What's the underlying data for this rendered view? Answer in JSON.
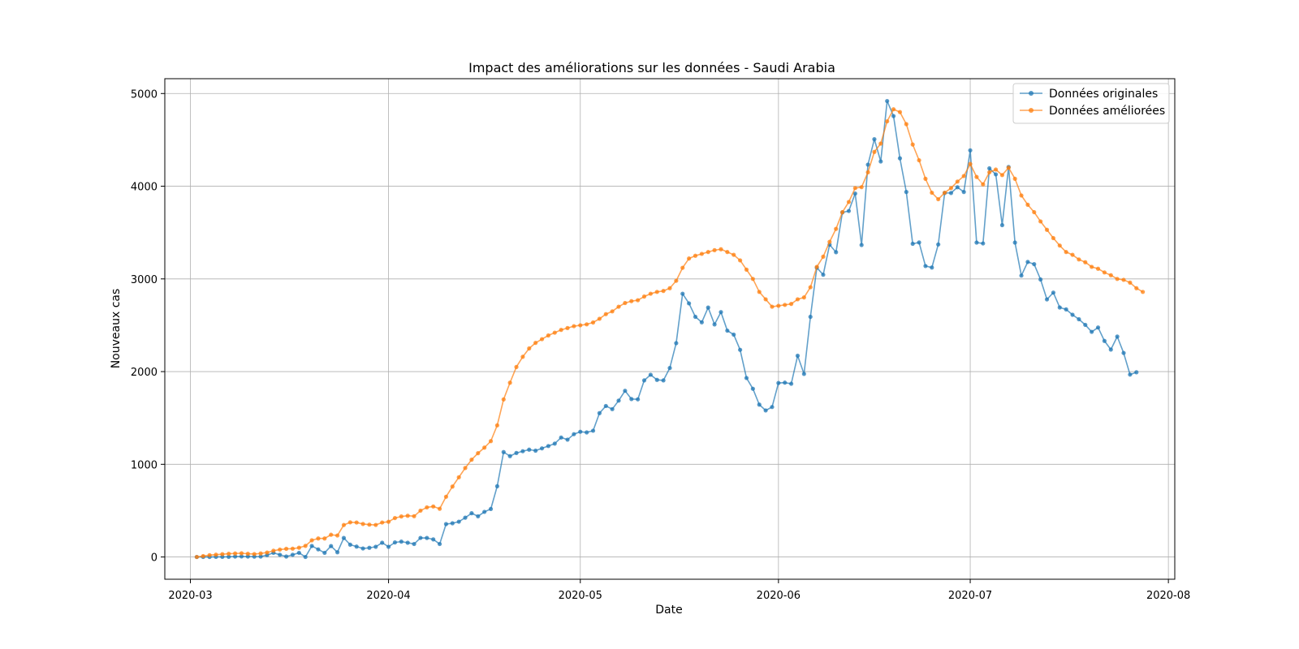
{
  "chart_data": {
    "type": "line",
    "title": "Impact des améliorations sur les données - Saudi Arabia",
    "xlabel": "Date",
    "ylabel": "Nouveaux cas",
    "x_start": "2020-03-02",
    "x_ticks": [
      "2020-03",
      "2020-04",
      "2020-05",
      "2020-06",
      "2020-07",
      "2020-08"
    ],
    "y_ticks": [
      0,
      1000,
      2000,
      3000,
      4000,
      5000
    ],
    "xlim": [
      "2020-02-26",
      "2020-08-02"
    ],
    "ylim": [
      -240,
      5160
    ],
    "grid": true,
    "legend_position": "top-right",
    "series": [
      {
        "name": "Données originales",
        "color": "#1f77b4",
        "values": [
          0,
          0,
          0,
          1,
          1,
          2,
          5,
          6,
          5,
          4,
          5,
          20,
          45,
          24,
          5,
          24,
          45,
          0,
          119,
          82,
          45,
          118,
          51,
          205,
          133,
          112,
          92,
          99,
          110,
          154,
          110,
          157,
          166,
          154,
          140,
          206,
          205,
          190,
          140,
          355,
          364,
          381,
          424,
          472,
          439,
          487,
          518,
          763,
          1132,
          1088,
          1122,
          1141,
          1158,
          1147,
          1172,
          1197,
          1223,
          1289,
          1266,
          1325,
          1351,
          1344,
          1362,
          1552,
          1629,
          1595,
          1687,
          1793,
          1704,
          1701,
          1905,
          1966,
          1911,
          1905,
          2039,
          2307,
          2840,
          2736,
          2591,
          2532,
          2691,
          2509,
          2642,
          2442,
          2399,
          2235,
          1931,
          1815,
          1644,
          1581,
          1618,
          1877,
          1881,
          1869,
          2171,
          1975,
          2591,
          3121,
          3045,
          3369,
          3288,
          3717,
          3733,
          3921,
          3366,
          4233,
          4507,
          4267,
          4919,
          4757,
          4301,
          3938,
          3379,
          3393,
          3139,
          3123,
          3372,
          3927,
          3927,
          3989,
          3938,
          4387,
          3392,
          3383,
          4193,
          4128,
          3580,
          4207,
          3392,
          3036,
          3183,
          3159,
          2994,
          2779,
          2852,
          2692,
          2671,
          2613,
          2565,
          2504,
          2429,
          2476,
          2331,
          2238,
          2378,
          2201,
          1968,
          1993
        ]
      },
      {
        "name": "Données améliorées",
        "color": "#ff7f0e",
        "values": [
          0,
          10,
          20,
          25,
          30,
          35,
          38,
          40,
          35,
          32,
          38,
          48,
          68,
          80,
          88,
          90,
          100,
          120,
          180,
          200,
          200,
          240,
          232,
          345,
          374,
          372,
          356,
          349,
          346,
          372,
          380,
          420,
          437,
          445,
          440,
          500,
          535,
          545,
          520,
          650,
          760,
          860,
          960,
          1050,
          1120,
          1180,
          1250,
          1420,
          1700,
          1880,
          2050,
          2160,
          2250,
          2310,
          2350,
          2390,
          2420,
          2450,
          2470,
          2490,
          2500,
          2510,
          2530,
          2570,
          2620,
          2650,
          2700,
          2740,
          2760,
          2770,
          2810,
          2840,
          2860,
          2870,
          2900,
          2980,
          3120,
          3220,
          3250,
          3270,
          3290,
          3310,
          3320,
          3290,
          3260,
          3200,
          3100,
          3000,
          2860,
          2780,
          2700,
          2710,
          2720,
          2730,
          2780,
          2800,
          2910,
          3130,
          3240,
          3400,
          3540,
          3720,
          3830,
          3980,
          3990,
          4150,
          4370,
          4460,
          4700,
          4830,
          4800,
          4670,
          4450,
          4280,
          4080,
          3930,
          3860,
          3930,
          3980,
          4050,
          4110,
          4240,
          4100,
          4020,
          4150,
          4180,
          4120,
          4200,
          4080,
          3900,
          3800,
          3720,
          3620,
          3530,
          3440,
          3360,
          3290,
          3260,
          3210,
          3180,
          3130,
          3110,
          3070,
          3040,
          3000,
          2990,
          2960,
          2900,
          2860
        ]
      }
    ]
  }
}
